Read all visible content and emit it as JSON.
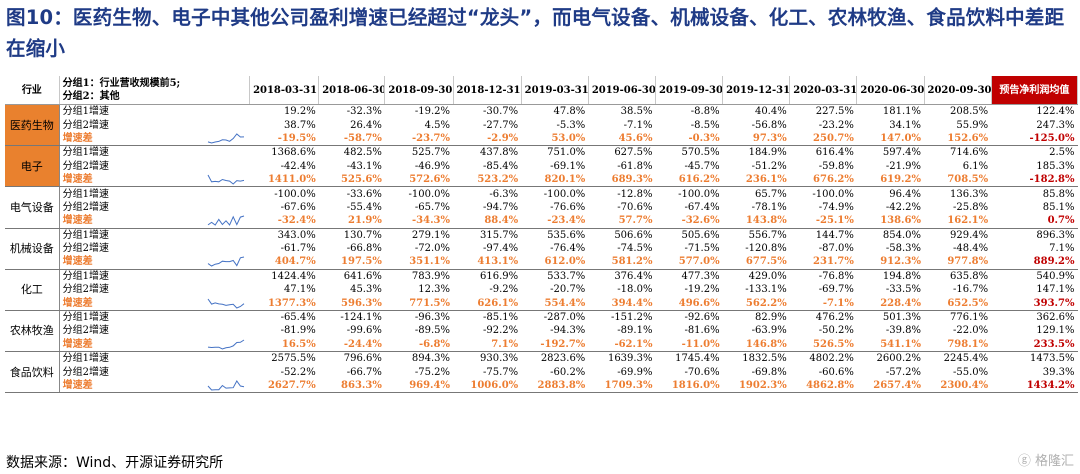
{
  "title": "图10：医药生物、电子中其他公司盈利增速已经超过“龙头”，而电气设备、机械设备、化工、农林牧渔、食品饮料中差距在缩小",
  "header": {
    "col0": "行业",
    "group_desc_1": "分组1：行业营收规模前5;",
    "group_desc_2": "分组2：其他",
    "dates": [
      "2018-03-31",
      "2018-06-30",
      "2018-09-30",
      "2018-12-31",
      "2019-03-31",
      "2019-06-30",
      "2019-09-30",
      "2019-12-31",
      "2020-03-31",
      "2020-06-30",
      "2020-09-30"
    ],
    "forecast": "预告净利润均值"
  },
  "sectors": [
    {
      "name": "医药生物",
      "orange": true,
      "rows": [
        {
          "label": "分组1增速",
          "values": [
            "19.2%",
            "-32.3%",
            "-19.2%",
            "-30.7%",
            "47.8%",
            "38.5%",
            "-8.8%",
            "40.4%",
            "227.5%",
            "181.1%",
            "208.5%",
            "122.4%"
          ]
        },
        {
          "label": "分组2增速",
          "values": [
            "38.7%",
            "26.4%",
            "4.5%",
            "-27.7%",
            "-5.3%",
            "-7.1%",
            "-8.5%",
            "-56.8%",
            "-23.2%",
            "34.1%",
            "55.9%",
            "247.3%"
          ]
        },
        {
          "label": "增速差",
          "diff": true,
          "spark": [
            -19.5,
            -58.7,
            -23.7,
            -2.9,
            53.0,
            45.6,
            -0.3,
            97.3,
            250.7,
            147.0,
            152.6
          ],
          "values": [
            "-19.5%",
            "-58.7%",
            "-23.7%",
            "-2.9%",
            "53.0%",
            "45.6%",
            "-0.3%",
            "97.3%",
            "250.7%",
            "147.0%",
            "152.6%",
            "-125.0%"
          ]
        }
      ]
    },
    {
      "name": "电子",
      "orange": true,
      "rows": [
        {
          "label": "分组1增速",
          "values": [
            "1368.6%",
            "482.5%",
            "525.7%",
            "437.8%",
            "751.0%",
            "627.5%",
            "570.5%",
            "184.9%",
            "616.4%",
            "597.4%",
            "714.6%",
            "2.5%"
          ]
        },
        {
          "label": "分组2增速",
          "values": [
            "-42.4%",
            "-43.1%",
            "-46.9%",
            "-85.4%",
            "-69.1%",
            "-61.8%",
            "-45.7%",
            "-51.2%",
            "-59.8%",
            "-21.9%",
            "6.1%",
            "185.3%"
          ]
        },
        {
          "label": "增速差",
          "diff": true,
          "spark": [
            1411.0,
            525.6,
            572.6,
            523.2,
            820.1,
            689.3,
            616.2,
            236.1,
            676.2,
            619.2,
            708.5
          ],
          "values": [
            "1411.0%",
            "525.6%",
            "572.6%",
            "523.2%",
            "820.1%",
            "689.3%",
            "616.2%",
            "236.1%",
            "676.2%",
            "619.2%",
            "708.5%",
            "-182.8%"
          ]
        }
      ]
    },
    {
      "name": "电气设备",
      "orange": false,
      "rows": [
        {
          "label": "分组1增速",
          "values": [
            "-100.0%",
            "-33.6%",
            "-100.0%",
            "-6.3%",
            "-100.0%",
            "-12.8%",
            "-100.0%",
            "65.7%",
            "-100.0%",
            "96.4%",
            "136.3%",
            "85.8%"
          ]
        },
        {
          "label": "分组2增速",
          "values": [
            "-67.6%",
            "-55.4%",
            "-65.7%",
            "-94.7%",
            "-76.6%",
            "-70.6%",
            "-67.4%",
            "-78.1%",
            "-74.9%",
            "-42.2%",
            "-25.8%",
            "85.1%"
          ]
        },
        {
          "label": "增速差",
          "diff": true,
          "spark": [
            -32.4,
            21.9,
            -34.3,
            88.4,
            -23.4,
            57.7,
            -32.6,
            143.8,
            -25.1,
            138.6,
            162.1
          ],
          "values": [
            "-32.4%",
            "21.9%",
            "-34.3%",
            "88.4%",
            "-23.4%",
            "57.7%",
            "-32.6%",
            "143.8%",
            "-25.1%",
            "138.6%",
            "162.1%",
            "0.7%"
          ]
        }
      ]
    },
    {
      "name": "机械设备",
      "orange": false,
      "rows": [
        {
          "label": "分组1增速",
          "values": [
            "343.0%",
            "130.7%",
            "279.1%",
            "315.7%",
            "535.6%",
            "506.6%",
            "505.6%",
            "556.7%",
            "144.7%",
            "854.0%",
            "929.4%",
            "896.3%"
          ]
        },
        {
          "label": "分组2增速",
          "values": [
            "-61.7%",
            "-66.8%",
            "-72.0%",
            "-97.4%",
            "-76.4%",
            "-74.5%",
            "-71.5%",
            "-120.8%",
            "-87.0%",
            "-58.3%",
            "-48.4%",
            "7.1%"
          ]
        },
        {
          "label": "增速差",
          "diff": true,
          "spark": [
            404.7,
            197.5,
            351.1,
            413.1,
            612.0,
            581.2,
            577.0,
            677.5,
            231.7,
            912.3,
            977.8
          ],
          "values": [
            "404.7%",
            "197.5%",
            "351.1%",
            "413.1%",
            "612.0%",
            "581.2%",
            "577.0%",
            "677.5%",
            "231.7%",
            "912.3%",
            "977.8%",
            "889.2%"
          ]
        }
      ]
    },
    {
      "name": "化工",
      "orange": false,
      "rows": [
        {
          "label": "分组1增速",
          "values": [
            "1424.4%",
            "641.6%",
            "783.9%",
            "616.9%",
            "533.7%",
            "376.4%",
            "477.3%",
            "429.0%",
            "-76.8%",
            "194.8%",
            "635.8%",
            "540.9%"
          ]
        },
        {
          "label": "分组2增速",
          "values": [
            "47.1%",
            "45.3%",
            "12.3%",
            "-9.2%",
            "-20.7%",
            "-18.0%",
            "-19.2%",
            "-133.1%",
            "-69.7%",
            "-33.5%",
            "-16.7%",
            "147.1%"
          ]
        },
        {
          "label": "增速差",
          "diff": true,
          "spark": [
            1377.3,
            596.3,
            771.5,
            626.1,
            554.4,
            394.4,
            496.6,
            562.2,
            -7.1,
            228.4,
            652.5
          ],
          "values": [
            "1377.3%",
            "596.3%",
            "771.5%",
            "626.1%",
            "554.4%",
            "394.4%",
            "496.6%",
            "562.2%",
            "-7.1%",
            "228.4%",
            "652.5%",
            "393.7%"
          ]
        }
      ]
    },
    {
      "name": "农林牧渔",
      "orange": false,
      "rows": [
        {
          "label": "分组1增速",
          "values": [
            "-65.4%",
            "-124.1%",
            "-96.3%",
            "-85.1%",
            "-287.0%",
            "-151.2%",
            "-92.6%",
            "82.9%",
            "476.2%",
            "501.3%",
            "776.1%",
            "362.6%"
          ]
        },
        {
          "label": "分组2增速",
          "values": [
            "-81.9%",
            "-99.6%",
            "-89.5%",
            "-92.2%",
            "-94.3%",
            "-89.1%",
            "-81.6%",
            "-63.9%",
            "-50.2%",
            "-39.8%",
            "-22.0%",
            "129.1%"
          ]
        },
        {
          "label": "增速差",
          "diff": true,
          "spark": [
            16.5,
            -24.4,
            -6.8,
            7.1,
            -192.7,
            -62.1,
            -11.0,
            146.8,
            526.5,
            541.1,
            798.1
          ],
          "values": [
            "16.5%",
            "-24.4%",
            "-6.8%",
            "7.1%",
            "-192.7%",
            "-62.1%",
            "-11.0%",
            "146.8%",
            "526.5%",
            "541.1%",
            "798.1%",
            "233.5%"
          ]
        }
      ]
    },
    {
      "name": "食品饮料",
      "orange": false,
      "rows": [
        {
          "label": "分组1增速",
          "values": [
            "2575.5%",
            "796.6%",
            "894.3%",
            "930.3%",
            "2823.6%",
            "1639.3%",
            "1745.4%",
            "1832.5%",
            "4802.2%",
            "2600.2%",
            "2245.4%",
            "1473.5%"
          ]
        },
        {
          "label": "分组2增速",
          "values": [
            "-52.2%",
            "-66.7%",
            "-75.2%",
            "-75.7%",
            "-60.2%",
            "-69.9%",
            "-70.6%",
            "-69.8%",
            "-60.6%",
            "-57.2%",
            "-55.0%",
            "39.3%"
          ]
        },
        {
          "label": "增速差",
          "diff": true,
          "spark": [
            2627.7,
            863.3,
            969.4,
            1006.0,
            2883.8,
            1709.3,
            1816.0,
            1902.3,
            4862.8,
            2657.4,
            2300.4
          ],
          "values": [
            "2627.7%",
            "863.3%",
            "969.4%",
            "1006.0%",
            "2883.8%",
            "1709.3%",
            "1816.0%",
            "1902.3%",
            "4862.8%",
            "2657.4%",
            "2300.4%",
            "1434.2%"
          ]
        }
      ]
    }
  ],
  "source": "数据来源：Wind、开源证券研究所",
  "logo_text": "格隆汇",
  "colors": {
    "title": "#1f3b86",
    "sector_bg": "#e9812e",
    "diff_text": "#ed7d31",
    "forecast_bg": "#c00000",
    "spark": "#4472c4"
  }
}
